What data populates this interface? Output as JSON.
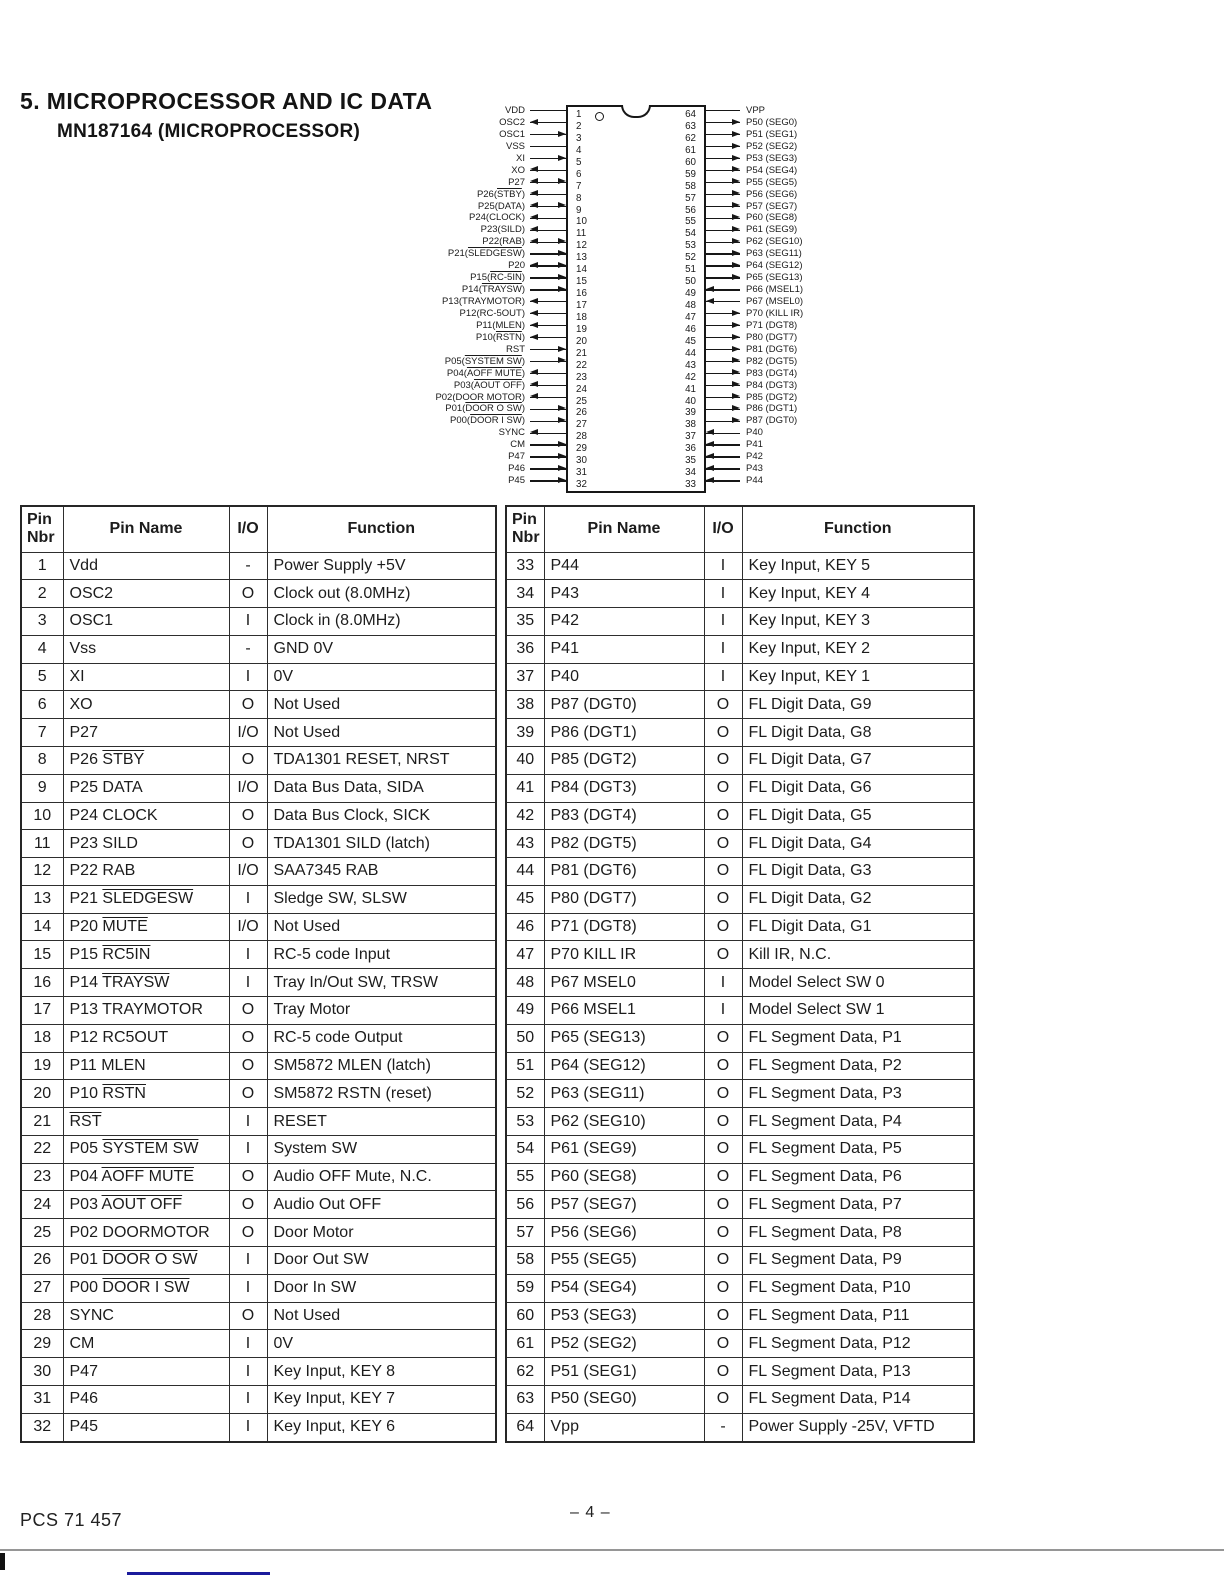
{
  "page": {
    "title": "5. MICROPROCESSOR AND IC DATA",
    "subtitle": "MN187164 (MICROPROCESSOR)"
  },
  "diagram": {
    "left_pins": [
      {
        "n": "1",
        "label": "VDD",
        "dir": "none"
      },
      {
        "n": "2",
        "label": "OSC2",
        "dir": "out"
      },
      {
        "n": "3",
        "label": "OSC1",
        "dir": "in"
      },
      {
        "n": "4",
        "label": "VSS",
        "dir": "none"
      },
      {
        "n": "5",
        "label": "XI",
        "dir": "in"
      },
      {
        "n": "6",
        "label": "XO",
        "dir": "out"
      },
      {
        "n": "7",
        "label": "P27",
        "dir": "bi"
      },
      {
        "n": "8",
        "label": "P26(|STBY|)",
        "dir": "out"
      },
      {
        "n": "9",
        "label": "P25(DATA)",
        "dir": "bi"
      },
      {
        "n": "10",
        "label": "P24(CLOCK)",
        "dir": "out"
      },
      {
        "n": "11",
        "label": "P23(SILD)",
        "dir": "out"
      },
      {
        "n": "12",
        "label": "P22(RAB)",
        "dir": "bi"
      },
      {
        "n": "13",
        "label": "P21(|SLEDGESW|)",
        "dir": "in"
      },
      {
        "n": "14",
        "label": "P20",
        "dir": "bi"
      },
      {
        "n": "15",
        "label": "P15(|RC-5IN|)",
        "dir": "in"
      },
      {
        "n": "16",
        "label": "P14(|TRAYSW|)",
        "dir": "in"
      },
      {
        "n": "17",
        "label": "P13(TRAYMOTOR)",
        "dir": "out"
      },
      {
        "n": "18",
        "label": "P12(RC-5OUT)",
        "dir": "out"
      },
      {
        "n": "19",
        "label": "P11(MLEN)",
        "dir": "out"
      },
      {
        "n": "20",
        "label": "P10(|RSTN|)",
        "dir": "out"
      },
      {
        "n": "21",
        "label": "RST",
        "dir": "in"
      },
      {
        "n": "22",
        "label": "P05(|SYSTEM SW|)",
        "dir": "in"
      },
      {
        "n": "23",
        "label": "P04(|AOFF MUTE|)",
        "dir": "out"
      },
      {
        "n": "24",
        "label": "P03(|AOUT OFF|)",
        "dir": "out"
      },
      {
        "n": "25",
        "label": "P02(DOOR MOTOR)",
        "dir": "out"
      },
      {
        "n": "26",
        "label": "P01(|DOOR O SW|)",
        "dir": "in"
      },
      {
        "n": "27",
        "label": "P00(|DOOR I SW|)",
        "dir": "in"
      },
      {
        "n": "28",
        "label": "SYNC",
        "dir": "out"
      },
      {
        "n": "29",
        "label": "CM",
        "dir": "in"
      },
      {
        "n": "30",
        "label": "P47",
        "dir": "in"
      },
      {
        "n": "31",
        "label": "P46",
        "dir": "in"
      },
      {
        "n": "32",
        "label": "P45",
        "dir": "in"
      }
    ],
    "right_pins": [
      {
        "n": "64",
        "label": "VPP",
        "dir": "none"
      },
      {
        "n": "63",
        "label": "P50 (SEG0)",
        "dir": "out"
      },
      {
        "n": "62",
        "label": "P51 (SEG1)",
        "dir": "out"
      },
      {
        "n": "61",
        "label": "P52 (SEG2)",
        "dir": "out"
      },
      {
        "n": "60",
        "label": "P53 (SEG3)",
        "dir": "out"
      },
      {
        "n": "59",
        "label": "P54 (SEG4)",
        "dir": "out"
      },
      {
        "n": "58",
        "label": "P55 (SEG5)",
        "dir": "out"
      },
      {
        "n": "57",
        "label": "P56 (SEG6)",
        "dir": "out"
      },
      {
        "n": "56",
        "label": "P57 (SEG7)",
        "dir": "out"
      },
      {
        "n": "55",
        "label": "P60 (SEG8)",
        "dir": "out"
      },
      {
        "n": "54",
        "label": "P61 (SEG9)",
        "dir": "out"
      },
      {
        "n": "53",
        "label": "P62 (SEG10)",
        "dir": "out"
      },
      {
        "n": "52",
        "label": "P63 (SEG11)",
        "dir": "out"
      },
      {
        "n": "51",
        "label": "P64 (SEG12)",
        "dir": "out"
      },
      {
        "n": "50",
        "label": "P65 (SEG13)",
        "dir": "out"
      },
      {
        "n": "49",
        "label": "P66 (MSEL1)",
        "dir": "in"
      },
      {
        "n": "48",
        "label": "P67 (MSEL0)",
        "dir": "in"
      },
      {
        "n": "47",
        "label": "P70 (KILL IR)",
        "dir": "out"
      },
      {
        "n": "46",
        "label": "P71 (DGT8)",
        "dir": "out"
      },
      {
        "n": "45",
        "label": "P80 (DGT7)",
        "dir": "out"
      },
      {
        "n": "44",
        "label": "P81 (DGT6)",
        "dir": "out"
      },
      {
        "n": "43",
        "label": "P82 (DGT5)",
        "dir": "out"
      },
      {
        "n": "42",
        "label": "P83 (DGT4)",
        "dir": "out"
      },
      {
        "n": "41",
        "label": "P84 (DGT3)",
        "dir": "out"
      },
      {
        "n": "40",
        "label": "P85 (DGT2)",
        "dir": "out"
      },
      {
        "n": "39",
        "label": "P86 (DGT1)",
        "dir": "out"
      },
      {
        "n": "38",
        "label": "P87 (DGT0)",
        "dir": "out"
      },
      {
        "n": "37",
        "label": "P40",
        "dir": "in"
      },
      {
        "n": "36",
        "label": "P41",
        "dir": "in"
      },
      {
        "n": "35",
        "label": "P42",
        "dir": "in"
      },
      {
        "n": "34",
        "label": "P43",
        "dir": "in"
      },
      {
        "n": "33",
        "label": "P44",
        "dir": "in"
      }
    ]
  },
  "table": {
    "headers": [
      "Pin Nbr",
      "Pin Name",
      "I/O",
      "Function"
    ],
    "left_rows": [
      [
        "1",
        "Vdd",
        "-",
        "Power Supply +5V"
      ],
      [
        "2",
        "OSC2",
        "O",
        "Clock out (8.0MHz)"
      ],
      [
        "3",
        "OSC1",
        "I",
        "Clock in (8.0MHz)"
      ],
      [
        "4",
        "Vss",
        "-",
        "GND 0V"
      ],
      [
        "5",
        "XI",
        "I",
        "0V"
      ],
      [
        "6",
        "XO",
        "O",
        "Not Used"
      ],
      [
        "7",
        "P27",
        "I/O",
        "Not Used"
      ],
      [
        "8",
        "P26 |STBY|",
        "O",
        "TDA1301 RESET, NRST"
      ],
      [
        "9",
        "P25 DATA",
        "I/O",
        "Data Bus Data, SIDA"
      ],
      [
        "10",
        "P24 CLOCK",
        "O",
        "Data Bus Clock, SICK"
      ],
      [
        "11",
        "P23 SILD",
        "O",
        "TDA1301 SILD (latch)"
      ],
      [
        "12",
        "P22 RAB",
        "I/O",
        "SAA7345 RAB"
      ],
      [
        "13",
        "P21 |SLEDGESW|",
        "I",
        "Sledge SW, SLSW"
      ],
      [
        "14",
        "P20 |MUTE|",
        "I/O",
        "Not Used"
      ],
      [
        "15",
        "P15 |RC5IN|",
        "I",
        "RC-5 code Input"
      ],
      [
        "16",
        "P14 |TRAYSW|",
        "I",
        "Tray In/Out SW, TRSW"
      ],
      [
        "17",
        "P13 TRAYMOTOR",
        "O",
        "Tray Motor"
      ],
      [
        "18",
        "P12 RC5OUT",
        "O",
        "RC-5 code Output"
      ],
      [
        "19",
        "P11 MLEN",
        "O",
        "SM5872 MLEN (latch)"
      ],
      [
        "20",
        "P10 |RSTN|",
        "O",
        "SM5872 RSTN (reset)"
      ],
      [
        "21",
        "|RST|",
        "I",
        "RESET"
      ],
      [
        "22",
        "P05 |SYSTEM SW|",
        "I",
        "System SW"
      ],
      [
        "23",
        "P04 |AOFF MUTE|",
        "O",
        "Audio OFF Mute, N.C."
      ],
      [
        "24",
        "P03 |AOUT OFF|",
        "O",
        "Audio Out OFF"
      ],
      [
        "25",
        "P02 DOORMOTOR",
        "O",
        "Door Motor"
      ],
      [
        "26",
        "P01 |DOOR O SW|",
        "I",
        "Door Out SW"
      ],
      [
        "27",
        "P00 |DOOR I SW|",
        "I",
        "Door In SW"
      ],
      [
        "28",
        "SYNC",
        "O",
        "Not Used"
      ],
      [
        "29",
        "CM",
        "I",
        "0V"
      ],
      [
        "30",
        "P47",
        "I",
        "Key Input, KEY 8"
      ],
      [
        "31",
        "P46",
        "I",
        "Key Input, KEY 7"
      ],
      [
        "32",
        "P45",
        "I",
        "Key Input, KEY 6"
      ]
    ],
    "right_rows": [
      [
        "33",
        "P44",
        "I",
        "Key Input, KEY 5"
      ],
      [
        "34",
        "P43",
        "I",
        "Key Input, KEY 4"
      ],
      [
        "35",
        "P42",
        "I",
        "Key Input, KEY 3"
      ],
      [
        "36",
        "P41",
        "I",
        "Key Input, KEY 2"
      ],
      [
        "37",
        "P40",
        "I",
        "Key Input, KEY 1"
      ],
      [
        "38",
        "P87 (DGT0)",
        "O",
        "FL Digit Data, G9"
      ],
      [
        "39",
        "P86 (DGT1)",
        "O",
        "FL Digit Data, G8"
      ],
      [
        "40",
        "P85 (DGT2)",
        "O",
        "FL Digit Data, G7"
      ],
      [
        "41",
        "P84 (DGT3)",
        "O",
        "FL Digit Data, G6"
      ],
      [
        "42",
        "P83 (DGT4)",
        "O",
        "FL Digit Data, G5"
      ],
      [
        "43",
        "P82 (DGT5)",
        "O",
        "FL Digit Data, G4"
      ],
      [
        "44",
        "P81 (DGT6)",
        "O",
        "FL Digit Data, G3"
      ],
      [
        "45",
        "P80 (DGT7)",
        "O",
        "FL Digit Data, G2"
      ],
      [
        "46",
        "P71 (DGT8)",
        "O",
        "FL Digit Data, G1"
      ],
      [
        "47",
        "P70 KILL IR",
        "O",
        "Kill IR, N.C."
      ],
      [
        "48",
        "P67 MSEL0",
        "I",
        "Model Select SW 0"
      ],
      [
        "49",
        "P66 MSEL1",
        "I",
        "Model Select SW 1"
      ],
      [
        "50",
        "P65 (SEG13)",
        "O",
        "FL Segment Data, P1"
      ],
      [
        "51",
        "P64 (SEG12)",
        "O",
        "FL Segment Data, P2"
      ],
      [
        "52",
        "P63 (SEG11)",
        "O",
        "FL Segment Data, P3"
      ],
      [
        "53",
        "P62 (SEG10)",
        "O",
        "FL Segment Data, P4"
      ],
      [
        "54",
        "P61 (SEG9)",
        "O",
        "FL Segment Data, P5"
      ],
      [
        "55",
        "P60 (SEG8)",
        "O",
        "FL Segment Data, P6"
      ],
      [
        "56",
        "P57 (SEG7)",
        "O",
        "FL Segment Data, P7"
      ],
      [
        "57",
        "P56 (SEG6)",
        "O",
        "FL Segment Data, P8"
      ],
      [
        "58",
        "P55 (SEG5)",
        "O",
        "FL Segment Data, P9"
      ],
      [
        "59",
        "P54 (SEG4)",
        "O",
        "FL Segment Data, P10"
      ],
      [
        "60",
        "P53 (SEG3)",
        "O",
        "FL Segment Data, P11"
      ],
      [
        "61",
        "P52 (SEG2)",
        "O",
        "FL Segment Data, P12"
      ],
      [
        "62",
        "P51 (SEG1)",
        "O",
        "FL Segment Data, P13"
      ],
      [
        "63",
        "P50 (SEG0)",
        "O",
        "FL Segment Data, P14"
      ],
      [
        "64",
        "Vpp",
        "-",
        "Power Supply -25V, VFTD"
      ]
    ]
  },
  "footer": {
    "doc_code": "PCS 71 457",
    "page_number": "– 4 –"
  },
  "colors": {
    "ink": "#1c1c1c",
    "underline_blue": "#1b1b9c",
    "divider_gray": "#969696"
  }
}
